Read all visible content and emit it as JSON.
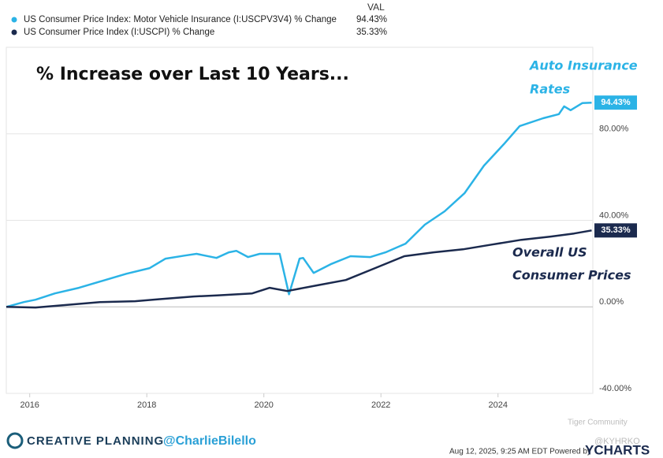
{
  "chart_data": {
    "type": "line",
    "title": "% Increase over Last 10 Years...",
    "legend_header": "VAL",
    "annotations": [
      "Auto Insurance",
      "Rates",
      "Overall US",
      "Consumer Prices"
    ],
    "series": [
      {
        "name": "US Consumer Price Index: Motor Vehicle Insurance (I:USCPV3V4) % Change",
        "color": "#2bb3e6",
        "x": [
          2015.6,
          2015.9,
          2016.1,
          2016.43,
          2016.84,
          2017.24,
          2017.65,
          2018.05,
          2018.32,
          2018.65,
          2018.85,
          2019.19,
          2019.4,
          2019.53,
          2019.73,
          2019.93,
          2020.13,
          2020.27,
          2020.43,
          2020.61,
          2020.67,
          2020.85,
          2021.14,
          2021.48,
          2021.82,
          2022.08,
          2022.42,
          2022.75,
          2023.09,
          2023.43,
          2023.76,
          2024.1,
          2024.37,
          2024.77,
          2025.04,
          2025.13,
          2025.24,
          2025.44,
          2025.6
        ],
        "values": [
          0,
          2.2,
          3.3,
          6.2,
          8.8,
          12,
          15.3,
          17.9,
          22.3,
          23.7,
          24.5,
          22.6,
          25.2,
          25.9,
          23,
          24.5,
          24.5,
          24.5,
          5.8,
          22.3,
          22.6,
          15.7,
          19.7,
          23.4,
          23,
          25.2,
          29.2,
          38,
          44.2,
          52.6,
          65.3,
          75.2,
          83.6,
          87.2,
          89.1,
          92.7,
          90.9,
          94.2,
          94.43
        ],
        "value_labels": [
          null,
          null,
          null,
          null,
          null,
          null,
          null,
          null,
          null,
          null,
          null,
          null,
          null,
          null,
          null,
          null,
          null,
          null,
          null,
          null,
          null,
          null,
          null,
          null,
          null,
          null,
          null,
          null,
          null,
          null,
          null,
          null,
          null,
          null,
          null,
          null,
          null,
          null,
          "94.43%"
        ]
      },
      {
        "name": "US Consumer Price Index (I:USCPI) % Change",
        "color": "#1b2a4e",
        "x": [
          2015.6,
          2016.1,
          2016.8,
          2017.2,
          2017.8,
          2018.2,
          2018.8,
          2019.2,
          2019.8,
          2020.1,
          2020.4,
          2020.9,
          2021.4,
          2021.9,
          2022.4,
          2022.9,
          2023.4,
          2023.9,
          2024.4,
          2024.9,
          2025.3,
          2025.6
        ],
        "values": [
          0,
          -0.3,
          1.3,
          2.2,
          2.6,
          3.5,
          4.8,
          5.3,
          6.2,
          8.8,
          7.3,
          9.9,
          12.4,
          17.9,
          23.4,
          25.2,
          26.6,
          28.8,
          31,
          32.5,
          33.9,
          35.33
        ],
        "value_labels": [
          null,
          null,
          null,
          null,
          null,
          null,
          null,
          null,
          null,
          null,
          null,
          null,
          null,
          null,
          null,
          null,
          null,
          null,
          null,
          null,
          null,
          "35.33%"
        ]
      }
    ],
    "xlim": [
      2015.6,
      2025.62
    ],
    "xticks": [
      2016,
      2018,
      2020,
      2022,
      2024
    ],
    "ylim": [
      -40,
      120
    ],
    "yticks": [
      {
        "value": -40,
        "label": "-40.00%"
      },
      {
        "value": 0,
        "label": "0.00%"
      },
      {
        "value": 40,
        "label": "40.00%"
      },
      {
        "value": 80,
        "label": "80.00%"
      }
    ],
    "grid": true
  },
  "footer": {
    "brand": "CREATIVE PLANNING",
    "handle": "@CharlieBilello",
    "timestamp": "Aug 12, 2025, 9:25 AM EDT Powered by",
    "logo": "YCHARTS",
    "watermark": "Tiger Community",
    "watermark_user": "@KYHRKO"
  }
}
